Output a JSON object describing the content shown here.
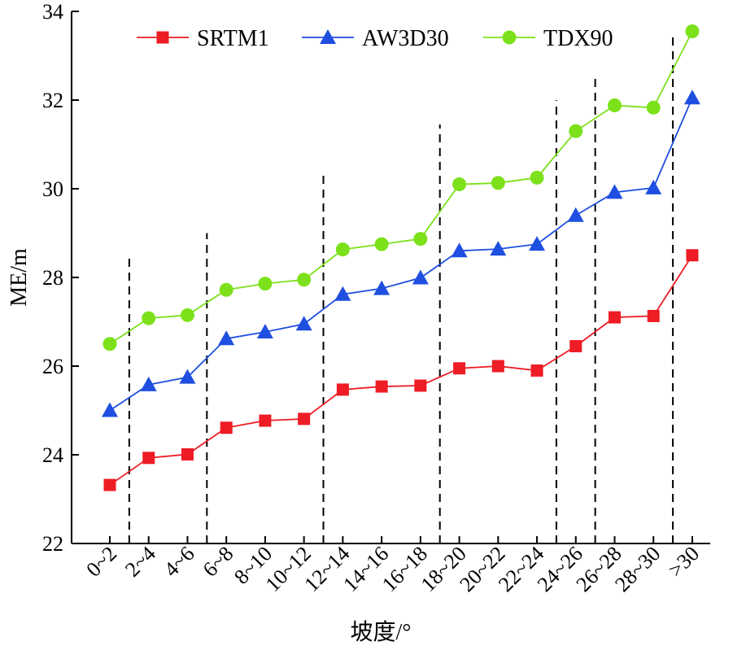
{
  "chart_data": {
    "type": "line",
    "xlabel": "坡度/°",
    "ylabel": "ME/m",
    "ylim": [
      22,
      34
    ],
    "yticks": [
      22,
      24,
      26,
      28,
      30,
      32,
      34
    ],
    "categories": [
      "0~2",
      "2~4",
      "4~6",
      "6~8",
      "8~10",
      "10~12",
      "12~14",
      "14~16",
      "16~18",
      "18~20",
      "20~22",
      "22~24",
      "24~26",
      "26~28",
      "28~30",
      ">30"
    ],
    "series": [
      {
        "name": "SRTM1",
        "color": "#ee1c25",
        "marker": "square",
        "values": [
          23.32,
          23.93,
          24.01,
          24.61,
          24.77,
          24.81,
          25.47,
          25.54,
          25.56,
          25.95,
          26.0,
          25.9,
          26.45,
          27.1,
          27.13,
          28.5
        ]
      },
      {
        "name": "AW3D30",
        "color": "#1f4fe0",
        "marker": "triangle",
        "values": [
          25.0,
          25.58,
          25.75,
          26.62,
          26.77,
          26.95,
          27.62,
          27.75,
          27.99,
          28.6,
          28.64,
          28.75,
          29.4,
          29.92,
          30.02,
          32.05
        ]
      },
      {
        "name": "TDX90",
        "color": "#7ce11a",
        "marker": "circle",
        "values": [
          26.5,
          27.08,
          27.15,
          27.72,
          27.86,
          27.95,
          28.63,
          28.75,
          28.87,
          30.1,
          30.13,
          30.25,
          31.3,
          31.88,
          31.83,
          33.55
        ]
      }
    ],
    "reference_lines": [
      {
        "after_index": 0,
        "top": 28.45
      },
      {
        "after_index": 2,
        "top": 29.0
      },
      {
        "after_index": 5,
        "top": 30.3
      },
      {
        "after_index": 8,
        "top": 31.45
      },
      {
        "after_index": 11,
        "top": 32.0
      },
      {
        "after_index": 12,
        "top": 32.6
      },
      {
        "after_index": 14,
        "top": 33.5
      }
    ],
    "legend": "top-center",
    "grid": false
  }
}
